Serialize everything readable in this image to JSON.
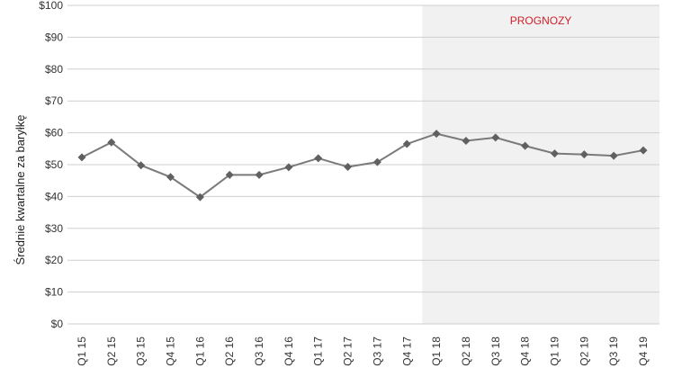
{
  "chart_data": {
    "type": "line",
    "title": "",
    "xlabel": "",
    "ylabel": "Średnie kwartalne za baryłkę",
    "ylim": [
      0,
      100
    ],
    "ytick_step": 10,
    "ytick_prefix": "$",
    "grid": true,
    "categories": [
      "Q1 15",
      "Q2 15",
      "Q3 15",
      "Q4 15",
      "Q1 16",
      "Q2 16",
      "Q3 16",
      "Q4 16",
      "Q1 17",
      "Q2 17",
      "Q3 17",
      "Q4 17",
      "Q1 18",
      "Q2 18",
      "Q3 18",
      "Q4 18",
      "Q1 19",
      "Q2 19",
      "Q3 19",
      "Q4 19"
    ],
    "series": [
      {
        "values": [
          52.3,
          57.0,
          49.8,
          46.1,
          39.8,
          46.8,
          46.8,
          49.2,
          52.0,
          49.3,
          50.8,
          56.5,
          59.7,
          57.5,
          58.5,
          55.9,
          53.5,
          53.2,
          52.8,
          54.5
        ]
      }
    ],
    "forecast_region": {
      "label": "PROGNOZY",
      "start_category": "Q1 18"
    },
    "colors": {
      "line": "#7a7a7a",
      "marker": "#606060",
      "grid": "#cfcfcf",
      "forecast_shade": "#f1f1f1",
      "forecast_label": "#d0202a"
    }
  }
}
